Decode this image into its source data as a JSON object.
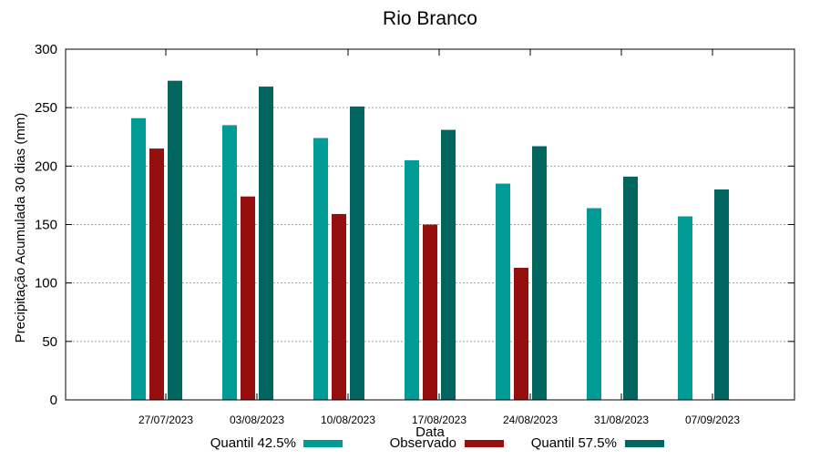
{
  "chart_data": {
    "type": "bar",
    "title": "Rio Branco",
    "xlabel": "Data",
    "ylabel": "Precipitação Acumulada 30 dias (mm)",
    "ylim": [
      0,
      300
    ],
    "yticks": [
      0,
      50,
      100,
      150,
      200,
      250,
      300
    ],
    "grid": true,
    "legend_position": "bottom",
    "categories": [
      "27/07/2023",
      "03/08/2023",
      "10/08/2023",
      "17/08/2023",
      "24/08/2023",
      "31/08/2023",
      "07/09/2023"
    ],
    "series": [
      {
        "name": "Quantil 42.5%",
        "color": "#009b95",
        "values": [
          241,
          235,
          224,
          205,
          185,
          164,
          157
        ]
      },
      {
        "name": "Observado",
        "color": "#960f0f",
        "values": [
          215,
          174,
          159,
          150,
          113,
          null,
          null
        ]
      },
      {
        "name": "Quantil 57.5%",
        "color": "#00665f",
        "values": [
          273,
          268,
          251,
          231,
          217,
          191,
          180
        ]
      }
    ]
  }
}
